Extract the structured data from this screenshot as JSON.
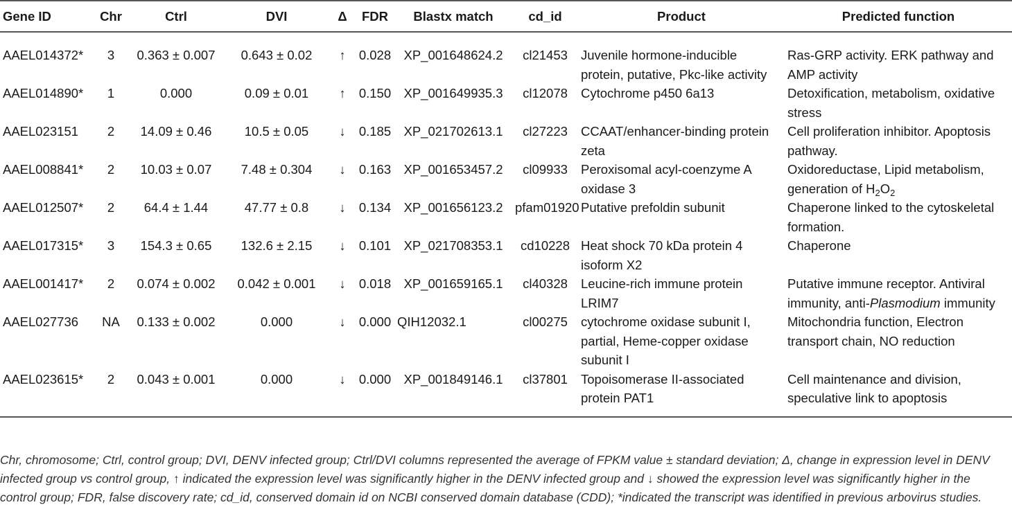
{
  "headers": [
    "Gene ID",
    "Chr",
    "Ctrl",
    "DVI",
    "Δ",
    "FDR",
    "Blastx match",
    "cd_id",
    "Product",
    "Predicted function"
  ],
  "rows": [
    {
      "gene": "AAEL014372*",
      "chr": "3",
      "ctrl": "0.363 ± 0.007",
      "dvi": "0.643 ± 0.02",
      "delta": "↑",
      "fdr": "0.028",
      "blastx": "XP_001648624.2",
      "cdid": "cl21453",
      "product": "Juvenile hormone-inducible protein, putative, Pkc-like activity",
      "function": "Ras-GRP activity. ERK pathway and AMP activity"
    },
    {
      "gene": "AAEL014890*",
      "chr": "1",
      "ctrl": "0.000",
      "dvi": "0.09 ± 0.01",
      "delta": "↑",
      "fdr": "0.150",
      "blastx": "XP_001649935.3",
      "cdid": "cl12078",
      "product": "Cytochrome p450 6a13",
      "function": "Detoxification, metabolism, oxidative stress"
    },
    {
      "gene": "AAEL023151",
      "chr": "2",
      "ctrl": "14.09 ± 0.46",
      "dvi": "10.5 ± 0.05",
      "delta": "↓",
      "fdr": "0.185",
      "blastx": "XP_021702613.1",
      "cdid": "cl27223",
      "product": "CCAAT/enhancer-binding protein zeta",
      "function": "Cell proliferation inhibitor. Apoptosis pathway."
    },
    {
      "gene": "AAEL008841*",
      "chr": "2",
      "ctrl": "10.03 ± 0.07",
      "dvi": "7.48 ± 0.304",
      "delta": "↓",
      "fdr": "0.163",
      "blastx": "XP_001653457.2",
      "cdid": "cl09933",
      "product": "Peroxisomal acyl-coenzyme A oxidase 3",
      "function_pre": "Oxidoreductase, Lipid metabolism, generation of H",
      "function_sub1": "2",
      "function_mid": "O",
      "function_sub2": "2"
    },
    {
      "gene": "AAEL012507*",
      "chr": "2",
      "ctrl": "64.4 ± 1.44",
      "dvi": "47.77 ± 0.8",
      "delta": "↓",
      "fdr": "0.134",
      "blastx": "XP_001656123.2",
      "cdid": "pfam01920",
      "product": "Putative prefoldin subunit",
      "function": "Chaperone linked to the cytoskeletal formation."
    },
    {
      "gene": "AAEL017315*",
      "chr": "3",
      "ctrl": "154.3 ± 0.65",
      "dvi": "132.6 ± 2.15",
      "delta": "↓",
      "fdr": "0.101",
      "blastx": "XP_021708353.1",
      "cdid": "cd10228",
      "product": "Heat shock 70 kDa protein 4 isoform X2",
      "function": "Chaperone"
    },
    {
      "gene": "AAEL001417*",
      "chr": "2",
      "ctrl": "0.074 ± 0.002",
      "dvi": "0.042 ± 0.001",
      "delta": "↓",
      "fdr": "0.018",
      "blastx": "XP_001659165.1",
      "cdid": "cl40328",
      "product": "Leucine-rich immune protein LRIM7",
      "function_pre": "Putative immune receptor. Antiviral immunity, anti-",
      "function_italic": "Plasmodium",
      "function_post": " immunity"
    },
    {
      "gene": "AAEL027736",
      "chr": "NA",
      "ctrl": "0.133 ± 0.002",
      "dvi": "0.000",
      "delta": "↓",
      "fdr": "0.000",
      "blastx": "QIH12032.1",
      "cdid": "cl00275",
      "product": "cytochrome oxidase subunit I, partial, Heme-copper oxidase subunit I",
      "function": "Mitochondria function, Electron transport chain, NO reduction"
    },
    {
      "gene": "AAEL023615*",
      "chr": "2",
      "ctrl": "0.043 ± 0.001",
      "dvi": "0.000",
      "delta": "↓",
      "fdr": "0.000",
      "blastx": "XP_001849146.1",
      "cdid": "cl37801",
      "product": "Topoisomerase II-associated protein PAT1",
      "function": "Cell maintenance and division, speculative link to apoptosis"
    }
  ],
  "footnote": "Chr, chromosome; Ctrl,  control group; DVI, DENV infected group; Ctrl/DVI columns represented the average of FPKM value ± standard deviation; Δ, change in expression level in DENV infected group vs control group, ↑ indicated the expression level was significantly higher in the DENV infected group and ↓ showed the expression level was significantly higher in the control group; FDR, false discovery rate; cd_id, conserved domain id on NCBI conserved domain database (CDD); *indicated the transcript was identified in previous arbovirus studies."
}
